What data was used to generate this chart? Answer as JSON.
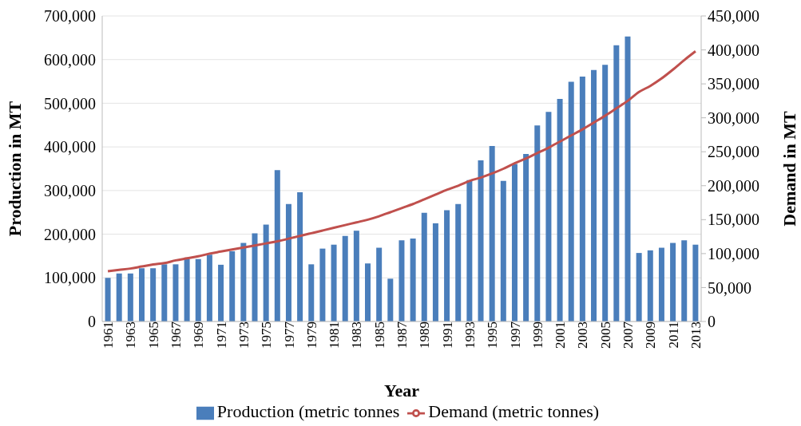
{
  "chart_data": {
    "type": "bar",
    "xlabel": "Year",
    "ylabel": "Production in MT",
    "y2label": "Demand in MT",
    "categories": [
      "1961",
      null,
      "1963",
      null,
      "1965",
      null,
      "1967",
      null,
      "1969",
      null,
      "1971",
      null,
      "1973",
      null,
      "1975",
      null,
      "1977",
      null,
      "1979",
      null,
      "1981",
      null,
      "1983",
      null,
      "1985",
      null,
      "1987",
      null,
      "1989",
      null,
      "1991",
      null,
      "1993",
      null,
      "1995",
      null,
      "1997",
      null,
      "1999",
      null,
      "2001",
      null,
      "2003",
      null,
      "2005",
      null,
      "2007",
      null,
      "2009",
      null,
      "2011",
      null,
      "2013"
    ],
    "series": [
      {
        "name": "Production (metric tonnes",
        "color": "#4a7ebb",
        "values": [
          100000,
          110000,
          110000,
          122000,
          122000,
          131000,
          131000,
          143000,
          143000,
          153000,
          130000,
          161000,
          180000,
          202000,
          222000,
          347000,
          269000,
          296000,
          131000,
          167000,
          176000,
          196000,
          208000,
          133000,
          169000,
          98000,
          186000,
          190000,
          249000,
          225000,
          255000,
          269000,
          324000,
          369000,
          402000,
          322000,
          361000,
          384000,
          449000,
          480000,
          510000,
          549000,
          561000,
          576000,
          588000,
          633000,
          653000,
          157000,
          163000,
          169000,
          180000,
          186000,
          176000
        ]
      },
      {
        "name": "Demand (metric tonnes)",
        "type": "line",
        "axis": "y2",
        "color": "#c0504d",
        "marker": "none",
        "line_style": "solid",
        "values": [
          74000,
          76000,
          78000,
          81000,
          84000,
          86000,
          90000,
          93000,
          96000,
          100000,
          103000,
          106000,
          109000,
          112000,
          115000,
          118000,
          122000,
          126000,
          130000,
          134000,
          138000,
          142000,
          146000,
          150000,
          155000,
          161000,
          167000,
          173000,
          180000,
          187000,
          194000,
          200000,
          207000,
          212000,
          218000,
          225000,
          233000,
          240000,
          248000,
          256000,
          265000,
          274000,
          283000,
          293000,
          303000,
          314000,
          325000,
          338000,
          347000,
          358000,
          371000,
          385000,
          398000
        ]
      }
    ],
    "ylim": [
      0,
      700000
    ],
    "yticks": [
      0,
      {
        "value": 100000,
        "label": "100,000"
      },
      {
        "value": 200000,
        "label": "200,000"
      },
      {
        "value": 300000,
        "label": "300,000"
      },
      {
        "value": 400000,
        "label": "400,000"
      },
      {
        "value": 500000,
        "label": "500,000"
      },
      {
        "value": 600000,
        "label": "600,000"
      },
      {
        "value": 700000,
        "label": "700,000"
      }
    ],
    "y2lim": [
      0,
      450000
    ],
    "y2ticks": [
      0,
      {
        "value": 50000,
        "label": "50,000"
      },
      {
        "value": 100000,
        "label": "100,000"
      },
      {
        "value": 150000,
        "label": "150,000"
      },
      {
        "value": 200000,
        "label": "200,000"
      },
      {
        "value": 250000,
        "label": "250,000"
      },
      {
        "value": 300000,
        "label": "300,000"
      },
      {
        "value": 350000,
        "label": "350,000"
      },
      {
        "value": 400000,
        "label": "400,000"
      },
      {
        "value": 450000,
        "label": "450,000"
      }
    ],
    "grid": "y",
    "legend": "bottom"
  }
}
